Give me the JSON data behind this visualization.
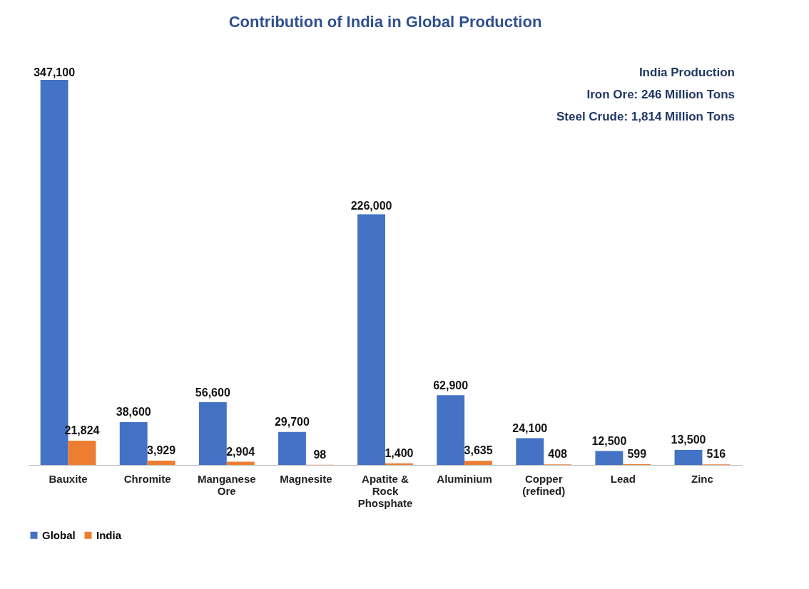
{
  "chart_data": {
    "type": "bar",
    "title": "Contribution of India in Global Production",
    "categories": [
      "Bauxite",
      "Chromite",
      "Manganese Ore",
      "Magnesite",
      "Apatite & Rock Phosphate",
      "Aluminium",
      "Copper (refined)",
      "Lead",
      "Zinc"
    ],
    "series": [
      {
        "name": "Global",
        "color": "#4472c4",
        "values": [
          347100,
          38600,
          56600,
          29700,
          226000,
          62900,
          24100,
          12500,
          13500
        ],
        "value_labels": [
          "347,100",
          "38,600",
          "56,600",
          "29,700",
          "226,000",
          "62,900",
          "24,100",
          "12,500",
          "13,500"
        ]
      },
      {
        "name": "India",
        "color": "#ed7d31",
        "values": [
          21824,
          3929,
          2904,
          98,
          1400,
          3635,
          408,
          599,
          516
        ],
        "value_labels": [
          "21,824",
          "3,929",
          "2,904",
          "98",
          "1,400",
          "3,635",
          "408",
          "599",
          "516"
        ]
      }
    ],
    "annotations": [
      "India Production",
      "Iron Ore: 246 Million Tons",
      "Steel Crude: 1,814 Million Tons"
    ],
    "legend": "bottom",
    "tick_labels": "x",
    "grid": false
  }
}
